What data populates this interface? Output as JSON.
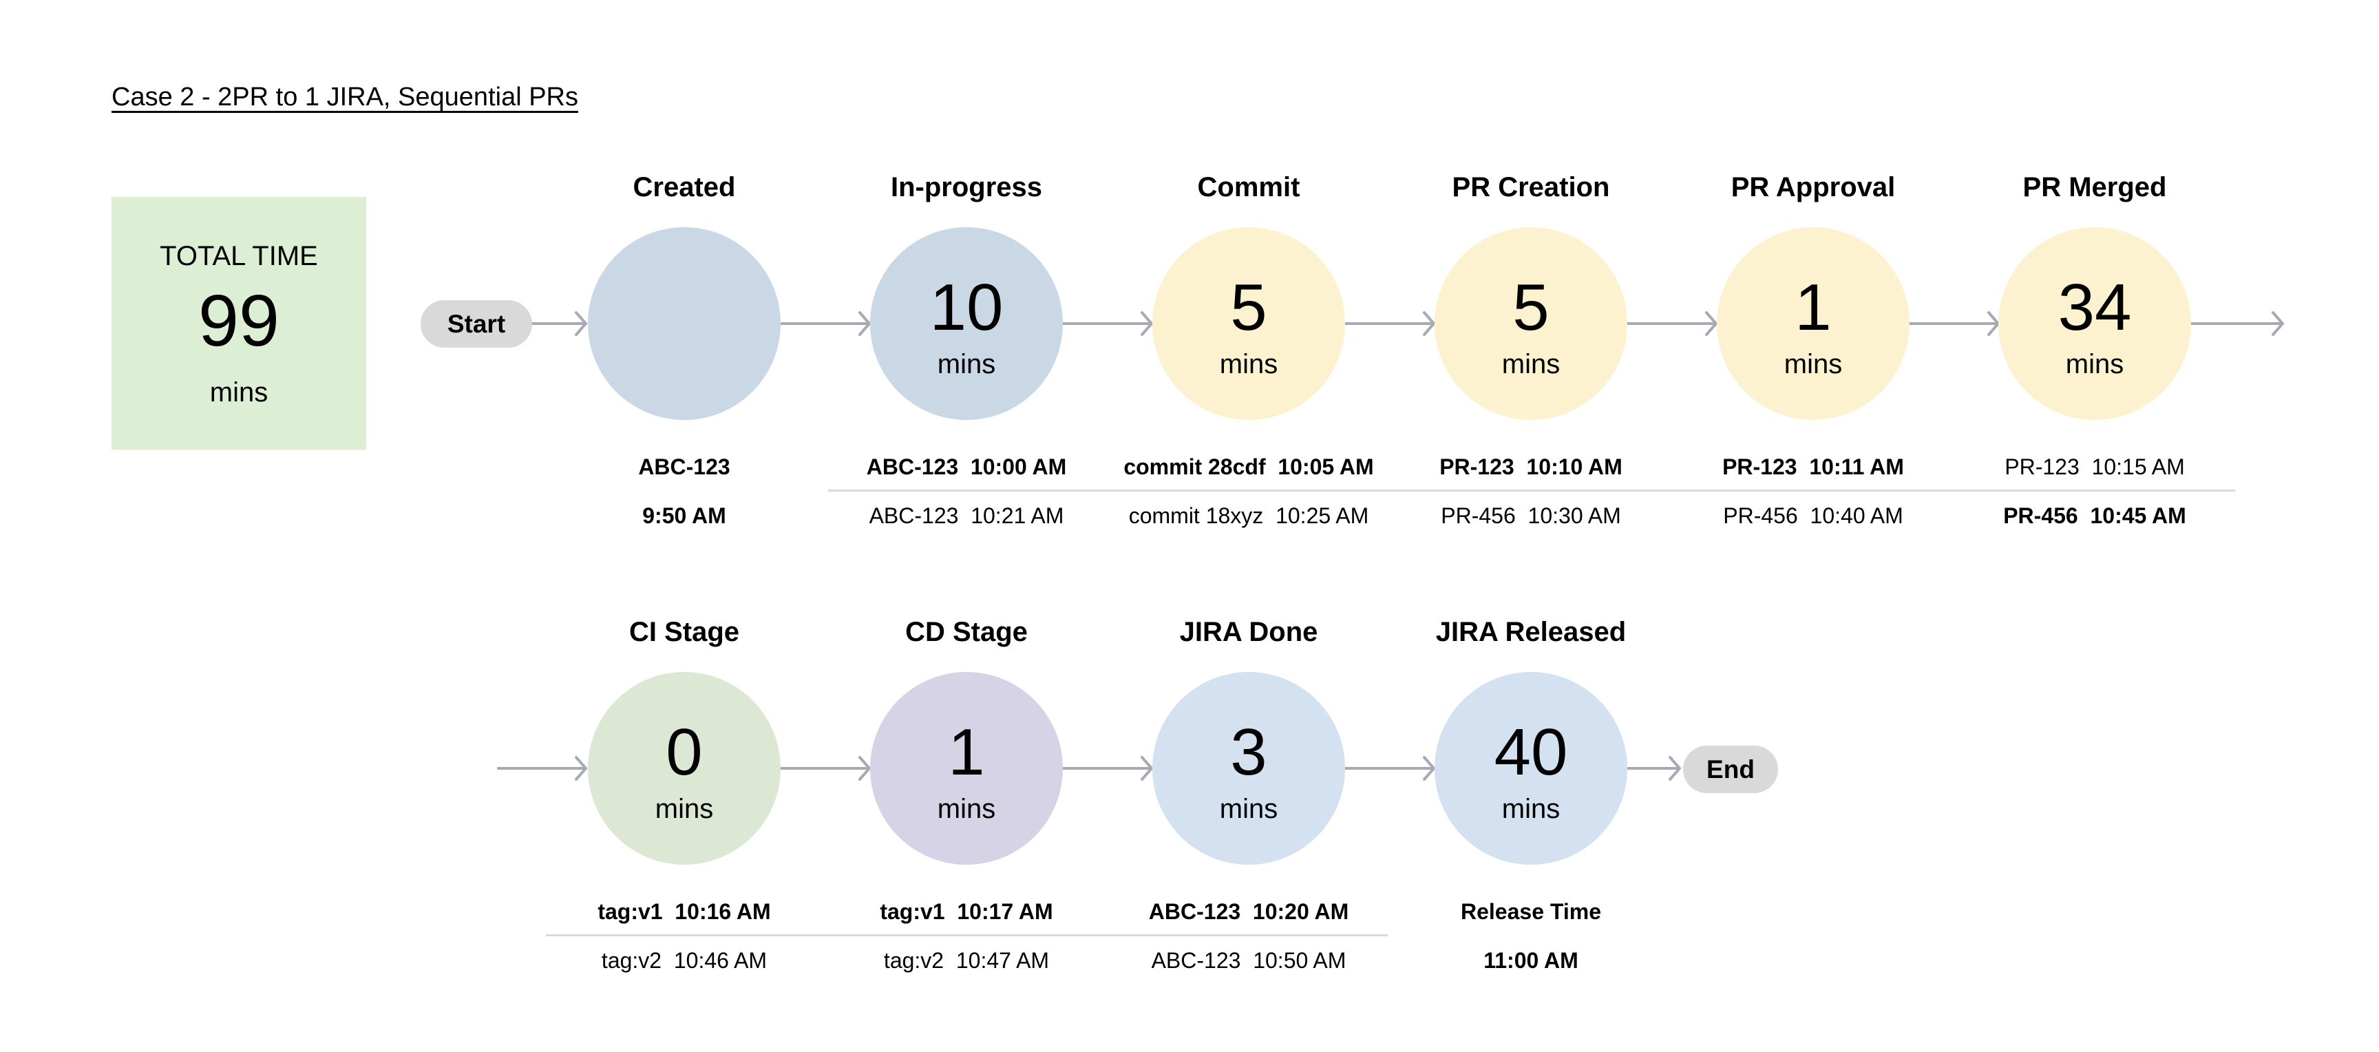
{
  "title": "Case 2 - 2PR to 1 JIRA, Sequential PRs",
  "total": {
    "label": "TOTAL TIME",
    "value": "99",
    "unit": "mins",
    "color": "#dcefd5"
  },
  "start_label": "Start",
  "end_label": "End",
  "stages": [
    {
      "label": "Created",
      "value": "",
      "unit": "",
      "color": "#cad8e5",
      "lines": [
        {
          "text": "ABC-123",
          "bold": true
        },
        {
          "text": "9:50 AM",
          "bold": true
        }
      ]
    },
    {
      "label": "In-progress",
      "value": "10",
      "unit": "mins",
      "color": "#cad8e5",
      "lines": [
        {
          "text": "ABC-123  10:00 AM",
          "bold": true
        },
        {
          "text": "ABC-123  10:21 AM",
          "bold": false
        }
      ]
    },
    {
      "label": "Commit",
      "value": "5",
      "unit": "mins",
      "color": "#fcf2cf",
      "lines": [
        {
          "text": "commit 28cdf  10:05 AM",
          "bold": true
        },
        {
          "text": "commit 18xyz  10:25 AM",
          "bold": false
        }
      ]
    },
    {
      "label": "PR Creation",
      "value": "5",
      "unit": "mins",
      "color": "#fcf2cf",
      "lines": [
        {
          "text": "PR-123  10:10 AM",
          "bold": true
        },
        {
          "text": "PR-456  10:30 AM",
          "bold": false
        }
      ]
    },
    {
      "label": "PR Approval",
      "value": "1",
      "unit": "mins",
      "color": "#fcf2cf",
      "lines": [
        {
          "text": "PR-123  10:11 AM",
          "bold": true
        },
        {
          "text": "PR-456  10:40 AM",
          "bold": false
        }
      ]
    },
    {
      "label": "PR Merged",
      "value": "34",
      "unit": "mins",
      "color": "#fcf2cf",
      "lines": [
        {
          "text": "PR-123  10:15 AM",
          "bold": false
        },
        {
          "text": "PR-456  10:45 AM",
          "bold": true
        }
      ]
    },
    {
      "label": "CI Stage",
      "value": "0",
      "unit": "mins",
      "color": "#dce8d4",
      "lines": [
        {
          "text": "tag:v1  10:16 AM",
          "bold": true
        },
        {
          "text": "tag:v2  10:46 AM",
          "bold": false
        }
      ]
    },
    {
      "label": "CD Stage",
      "value": "1",
      "unit": "mins",
      "color": "#d7d3e6",
      "lines": [
        {
          "text": "tag:v1  10:17 AM",
          "bold": true
        },
        {
          "text": "tag:v2  10:47 AM",
          "bold": false
        }
      ]
    },
    {
      "label": "JIRA Done",
      "value": "3",
      "unit": "mins",
      "color": "#d3e1f0",
      "lines": [
        {
          "text": "ABC-123  10:20 AM",
          "bold": true
        },
        {
          "text": "ABC-123  10:50 AM",
          "bold": false
        }
      ]
    },
    {
      "label": "JIRA Released",
      "value": "40",
      "unit": "mins",
      "color": "#d3e1f0",
      "lines": [
        {
          "text": "Release Time",
          "bold": true
        },
        {
          "text": "11:00 AM",
          "bold": true
        }
      ]
    }
  ],
  "arrow_color": "#a7a9b4",
  "pill_color": "#d9d9d9"
}
